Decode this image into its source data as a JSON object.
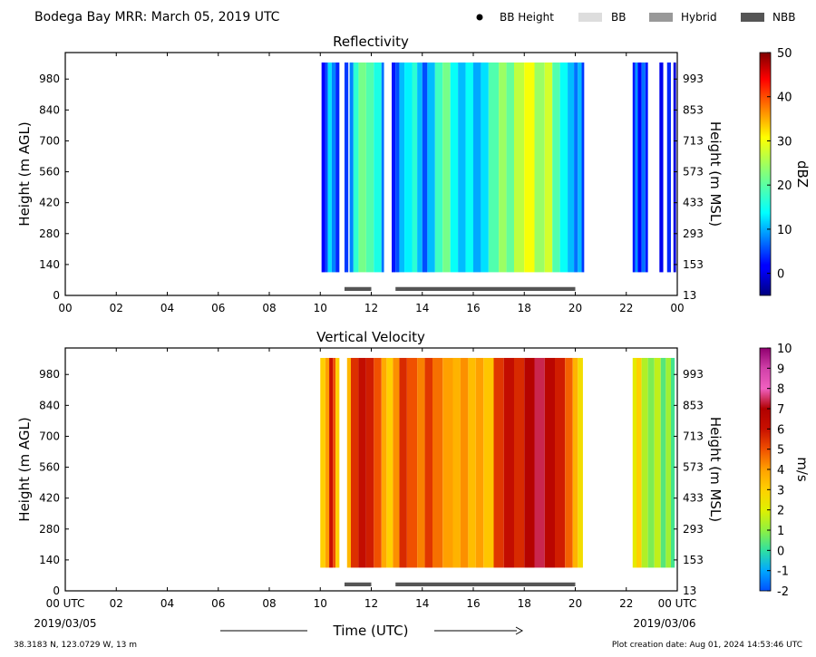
{
  "header": {
    "title": "Bodega Bay MRR:  March 05, 2019 UTC",
    "legend": [
      {
        "label": "BB Height",
        "kind": "dot",
        "color": "#000000"
      },
      {
        "label": "BB",
        "kind": "bar",
        "color": "#dddddd"
      },
      {
        "label": "Hybrid",
        "kind": "bar",
        "color": "#999999"
      },
      {
        "label": "NBB",
        "kind": "bar",
        "color": "#555555"
      }
    ]
  },
  "footer": {
    "location": "38.3183 N, 123.0729 W, 13 m",
    "creation": "Plot creation date: Aug 01, 2024 14:53:46 UTC",
    "xlabel": "Time (UTC)",
    "start_date": "2019/03/05",
    "end_date": "2019/03/06"
  },
  "colors": {
    "rain_type_bar": "#555555",
    "axis": "#000000"
  },
  "chart_data": [
    {
      "type": "heatmap",
      "title": "Reflectivity",
      "ylabel": "Height (m AGL)",
      "ylabel_right": "Height (m MSL)",
      "xlim": [
        0,
        24
      ],
      "ylim": [
        0,
        1100
      ],
      "x_ticks": [
        "00",
        "02",
        "04",
        "06",
        "08",
        "10",
        "12",
        "14",
        "16",
        "18",
        "20",
        "22",
        "00"
      ],
      "y_ticks": [
        0,
        140,
        280,
        420,
        560,
        700,
        840,
        980
      ],
      "y_ticks_right": [
        13,
        153,
        293,
        433,
        573,
        713,
        853,
        993
      ],
      "colorbar": {
        "label": "dBZ",
        "min": -5,
        "max": 50,
        "ticks": [
          0,
          10,
          20,
          30,
          40,
          50
        ]
      },
      "data_height_range": [
        105,
        1055
      ],
      "columns": [
        {
          "x0": 10.05,
          "x1": 10.2,
          "v": 2
        },
        {
          "x0": 10.2,
          "x1": 10.3,
          "v": 6
        },
        {
          "x0": 10.3,
          "x1": 10.45,
          "v": 14
        },
        {
          "x0": 10.45,
          "x1": 10.6,
          "v": 9
        },
        {
          "x0": 10.6,
          "x1": 10.75,
          "v": 4
        },
        {
          "x0": 10.95,
          "x1": 11.1,
          "v": 5
        },
        {
          "x0": 11.15,
          "x1": 11.3,
          "v": 9
        },
        {
          "x0": 11.3,
          "x1": 11.5,
          "v": 18
        },
        {
          "x0": 11.5,
          "x1": 11.8,
          "v": 22
        },
        {
          "x0": 11.8,
          "x1": 12.1,
          "v": 20
        },
        {
          "x0": 12.1,
          "x1": 12.4,
          "v": 17
        },
        {
          "x0": 12.4,
          "x1": 12.5,
          "v": 8
        },
        {
          "x0": 12.8,
          "x1": 12.95,
          "v": 3
        },
        {
          "x0": 12.95,
          "x1": 13.1,
          "v": 6
        },
        {
          "x0": 13.1,
          "x1": 13.3,
          "v": 12
        },
        {
          "x0": 13.3,
          "x1": 13.6,
          "v": 15
        },
        {
          "x0": 13.6,
          "x1": 13.8,
          "v": 18
        },
        {
          "x0": 13.8,
          "x1": 14.0,
          "v": 12
        },
        {
          "x0": 14.0,
          "x1": 14.2,
          "v": 6
        },
        {
          "x0": 14.2,
          "x1": 14.5,
          "v": 12
        },
        {
          "x0": 14.5,
          "x1": 14.8,
          "v": 19
        },
        {
          "x0": 14.8,
          "x1": 15.1,
          "v": 22
        },
        {
          "x0": 15.1,
          "x1": 15.4,
          "v": 16
        },
        {
          "x0": 15.4,
          "x1": 15.7,
          "v": 12
        },
        {
          "x0": 15.7,
          "x1": 16.0,
          "v": 16
        },
        {
          "x0": 16.0,
          "x1": 16.3,
          "v": 11
        },
        {
          "x0": 16.3,
          "x1": 16.6,
          "v": 14
        },
        {
          "x0": 16.6,
          "x1": 17.0,
          "v": 20
        },
        {
          "x0": 17.0,
          "x1": 17.3,
          "v": 24
        },
        {
          "x0": 17.3,
          "x1": 17.6,
          "v": 21
        },
        {
          "x0": 17.6,
          "x1": 18.0,
          "v": 26
        },
        {
          "x0": 18.0,
          "x1": 18.4,
          "v": 29
        },
        {
          "x0": 18.4,
          "x1": 18.8,
          "v": 24
        },
        {
          "x0": 18.8,
          "x1": 19.1,
          "v": 27
        },
        {
          "x0": 19.1,
          "x1": 19.4,
          "v": 20
        },
        {
          "x0": 19.4,
          "x1": 19.7,
          "v": 16
        },
        {
          "x0": 19.7,
          "x1": 19.95,
          "v": 12
        },
        {
          "x0": 19.95,
          "x1": 20.1,
          "v": 8
        },
        {
          "x0": 20.1,
          "x1": 20.25,
          "v": 12
        },
        {
          "x0": 20.25,
          "x1": 20.35,
          "v": 5
        },
        {
          "x0": 22.25,
          "x1": 22.35,
          "v": 3
        },
        {
          "x0": 22.35,
          "x1": 22.45,
          "v": 10
        },
        {
          "x0": 22.45,
          "x1": 22.6,
          "v": 2
        },
        {
          "x0": 22.6,
          "x1": 22.75,
          "v": 8
        },
        {
          "x0": 22.75,
          "x1": 22.85,
          "v": 3
        },
        {
          "x0": 23.3,
          "x1": 23.45,
          "v": 1
        },
        {
          "x0": 23.6,
          "x1": 23.75,
          "v": 4
        },
        {
          "x0": 23.85,
          "x1": 23.95,
          "v": 0
        }
      ],
      "rain_type_bars": [
        {
          "x0": 10.95,
          "x1": 12.0,
          "type": "NBB"
        },
        {
          "x0": 12.95,
          "x1": 20.0,
          "type": "NBB"
        }
      ]
    },
    {
      "type": "heatmap",
      "title": "Vertical Velocity",
      "ylabel": "Height (m AGL)",
      "ylabel_right": "Height (m MSL)",
      "xlim": [
        0,
        24
      ],
      "ylim": [
        0,
        1100
      ],
      "x_ticks": [
        "00 UTC",
        "02",
        "04",
        "06",
        "08",
        "10",
        "12",
        "14",
        "16",
        "18",
        "20",
        "22",
        "00 UTC"
      ],
      "y_ticks": [
        0,
        140,
        280,
        420,
        560,
        700,
        840,
        980
      ],
      "y_ticks_right": [
        13,
        153,
        293,
        433,
        573,
        713,
        853,
        993
      ],
      "colorbar": {
        "label": "m/s",
        "min": -2,
        "max": 10,
        "ticks": [
          -2,
          -1,
          0,
          1,
          2,
          3,
          4,
          5,
          6,
          7,
          8,
          9,
          10
        ]
      },
      "data_height_range": [
        105,
        1055
      ],
      "columns": [
        {
          "x0": 10.0,
          "x1": 10.2,
          "v": 3
        },
        {
          "x0": 10.2,
          "x1": 10.35,
          "v": 4
        },
        {
          "x0": 10.35,
          "x1": 10.5,
          "v": 6
        },
        {
          "x0": 10.5,
          "x1": 10.6,
          "v": 5
        },
        {
          "x0": 10.6,
          "x1": 10.75,
          "v": 3
        },
        {
          "x0": 11.05,
          "x1": 11.2,
          "v": 3.5
        },
        {
          "x0": 11.2,
          "x1": 11.5,
          "v": 5.5
        },
        {
          "x0": 11.5,
          "x1": 11.8,
          "v": 6.2
        },
        {
          "x0": 11.8,
          "x1": 12.1,
          "v": 5.8
        },
        {
          "x0": 12.1,
          "x1": 12.4,
          "v": 5
        },
        {
          "x0": 12.4,
          "x1": 12.6,
          "v": 3.8
        },
        {
          "x0": 12.6,
          "x1": 12.85,
          "v": 3
        },
        {
          "x0": 12.85,
          "x1": 13.1,
          "v": 4.2
        },
        {
          "x0": 13.1,
          "x1": 13.4,
          "v": 5.6
        },
        {
          "x0": 13.4,
          "x1": 13.8,
          "v": 5
        },
        {
          "x0": 13.8,
          "x1": 14.1,
          "v": 4.4
        },
        {
          "x0": 14.1,
          "x1": 14.4,
          "v": 5.4
        },
        {
          "x0": 14.4,
          "x1": 14.8,
          "v": 4.6
        },
        {
          "x0": 14.8,
          "x1": 15.2,
          "v": 4
        },
        {
          "x0": 15.2,
          "x1": 15.5,
          "v": 3.6
        },
        {
          "x0": 15.5,
          "x1": 15.8,
          "v": 4.2
        },
        {
          "x0": 15.8,
          "x1": 16.1,
          "v": 3.4
        },
        {
          "x0": 16.1,
          "x1": 16.4,
          "v": 4
        },
        {
          "x0": 16.4,
          "x1": 16.8,
          "v": 3.2
        },
        {
          "x0": 16.8,
          "x1": 17.2,
          "v": 5.4
        },
        {
          "x0": 17.2,
          "x1": 17.6,
          "v": 6.2
        },
        {
          "x0": 17.6,
          "x1": 18.0,
          "v": 5.6
        },
        {
          "x0": 18.0,
          "x1": 18.4,
          "v": 6.8
        },
        {
          "x0": 18.4,
          "x1": 18.8,
          "v": 7.4
        },
        {
          "x0": 18.8,
          "x1": 19.2,
          "v": 6.6
        },
        {
          "x0": 19.2,
          "x1": 19.6,
          "v": 5.8
        },
        {
          "x0": 19.6,
          "x1": 19.9,
          "v": 4.8
        },
        {
          "x0": 19.9,
          "x1": 20.1,
          "v": 3.6
        },
        {
          "x0": 20.1,
          "x1": 20.3,
          "v": 2.6
        },
        {
          "x0": 22.25,
          "x1": 22.4,
          "v": 2.2
        },
        {
          "x0": 22.4,
          "x1": 22.6,
          "v": 3
        },
        {
          "x0": 22.6,
          "x1": 22.85,
          "v": 1.4
        },
        {
          "x0": 22.85,
          "x1": 23.1,
          "v": 0.8
        },
        {
          "x0": 23.1,
          "x1": 23.35,
          "v": 1.6
        },
        {
          "x0": 23.35,
          "x1": 23.55,
          "v": 0.4
        },
        {
          "x0": 23.55,
          "x1": 23.75,
          "v": 1.2
        },
        {
          "x0": 23.75,
          "x1": 23.9,
          "v": 0.2
        }
      ],
      "rain_type_bars": [
        {
          "x0": 10.95,
          "x1": 12.0,
          "type": "NBB"
        },
        {
          "x0": 12.95,
          "x1": 20.0,
          "type": "NBB"
        }
      ]
    }
  ]
}
